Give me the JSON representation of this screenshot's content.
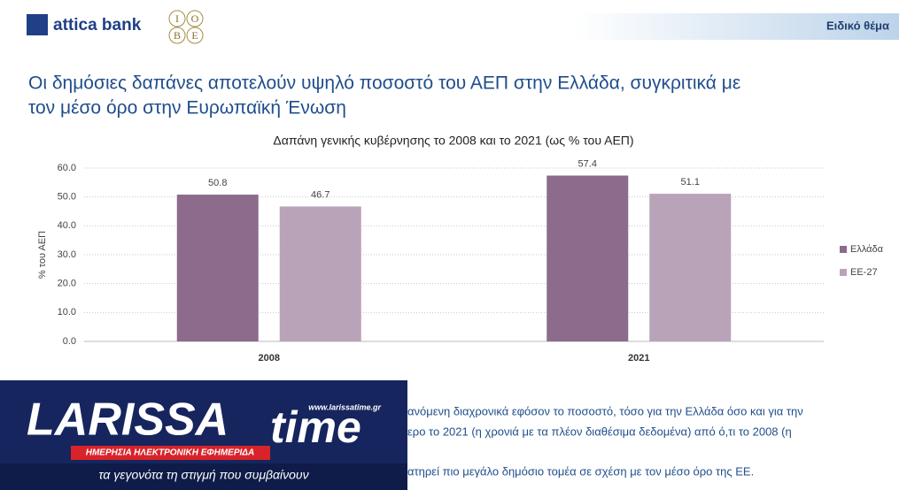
{
  "header": {
    "brand": "attica bank",
    "logo_letters": [
      "Ι",
      "Ο",
      "Β",
      "Ε"
    ],
    "section": "Ειδικό θέμα"
  },
  "slide_title": [
    "Οι δημόσιες δαπάνες αποτελούν υψηλό ποσοστό του ΑΕΠ στην Ελλάδα, συγκριτικά με",
    "τον μέσο όρο στην Ευρωπαϊκή Ένωση"
  ],
  "chart_data": {
    "type": "bar",
    "title": "Δαπάνη γενικής κυβέρνησης το 2008 και το 2021 (ως % του ΑΕΠ)",
    "y_label": "% του ΑΕΠ",
    "categories": [
      "2008",
      "2021"
    ],
    "series": [
      {
        "name": "Ελλάδα",
        "color": "#8c6b8c",
        "values": [
          50.8,
          57.4
        ]
      },
      {
        "name": "ΕΕ-27",
        "color": "#b9a3b9",
        "values": [
          46.7,
          51.1
        ]
      }
    ],
    "ylim": [
      0,
      60
    ],
    "yticks": [
      {
        "value": 0,
        "label": "0.0"
      },
      {
        "value": 10,
        "label": "10.0"
      },
      {
        "value": 20,
        "label": "20.0"
      },
      {
        "value": 30,
        "label": "30.0"
      },
      {
        "value": 40,
        "label": "40.0"
      },
      {
        "value": 50,
        "label": "50.0"
      },
      {
        "value": 60,
        "label": "60.0"
      }
    ],
    "grid": true,
    "legend": "right"
  },
  "body_text": [
    "ανόμενη διαχρονικά εφόσον το ποσοστό, τόσο για την Ελλάδα όσο και για την",
    "ερο το 2021 (η χρονιά με τα πλέον διαθέσιμα δεδομένα) από ό,τι το 2008 (η",
    "ατηρεί πιο μεγάλο δημόσιο τομέα σε σχέση με τον μέσο όρο της ΕΕ."
  ],
  "overlay": {
    "name_part1": "LARISSA",
    "name_part2": "time",
    "url": "www.larissatime.gr",
    "subtitle": "ΗΜΕΡΗΣΙΑ ΗΛΕΚΤΡΟΝΙΚΗ ΕΦΗΜΕΡΙΔΑ",
    "tagline": "τα γεγονότα τη στιγμή που συμβαίνουν"
  }
}
